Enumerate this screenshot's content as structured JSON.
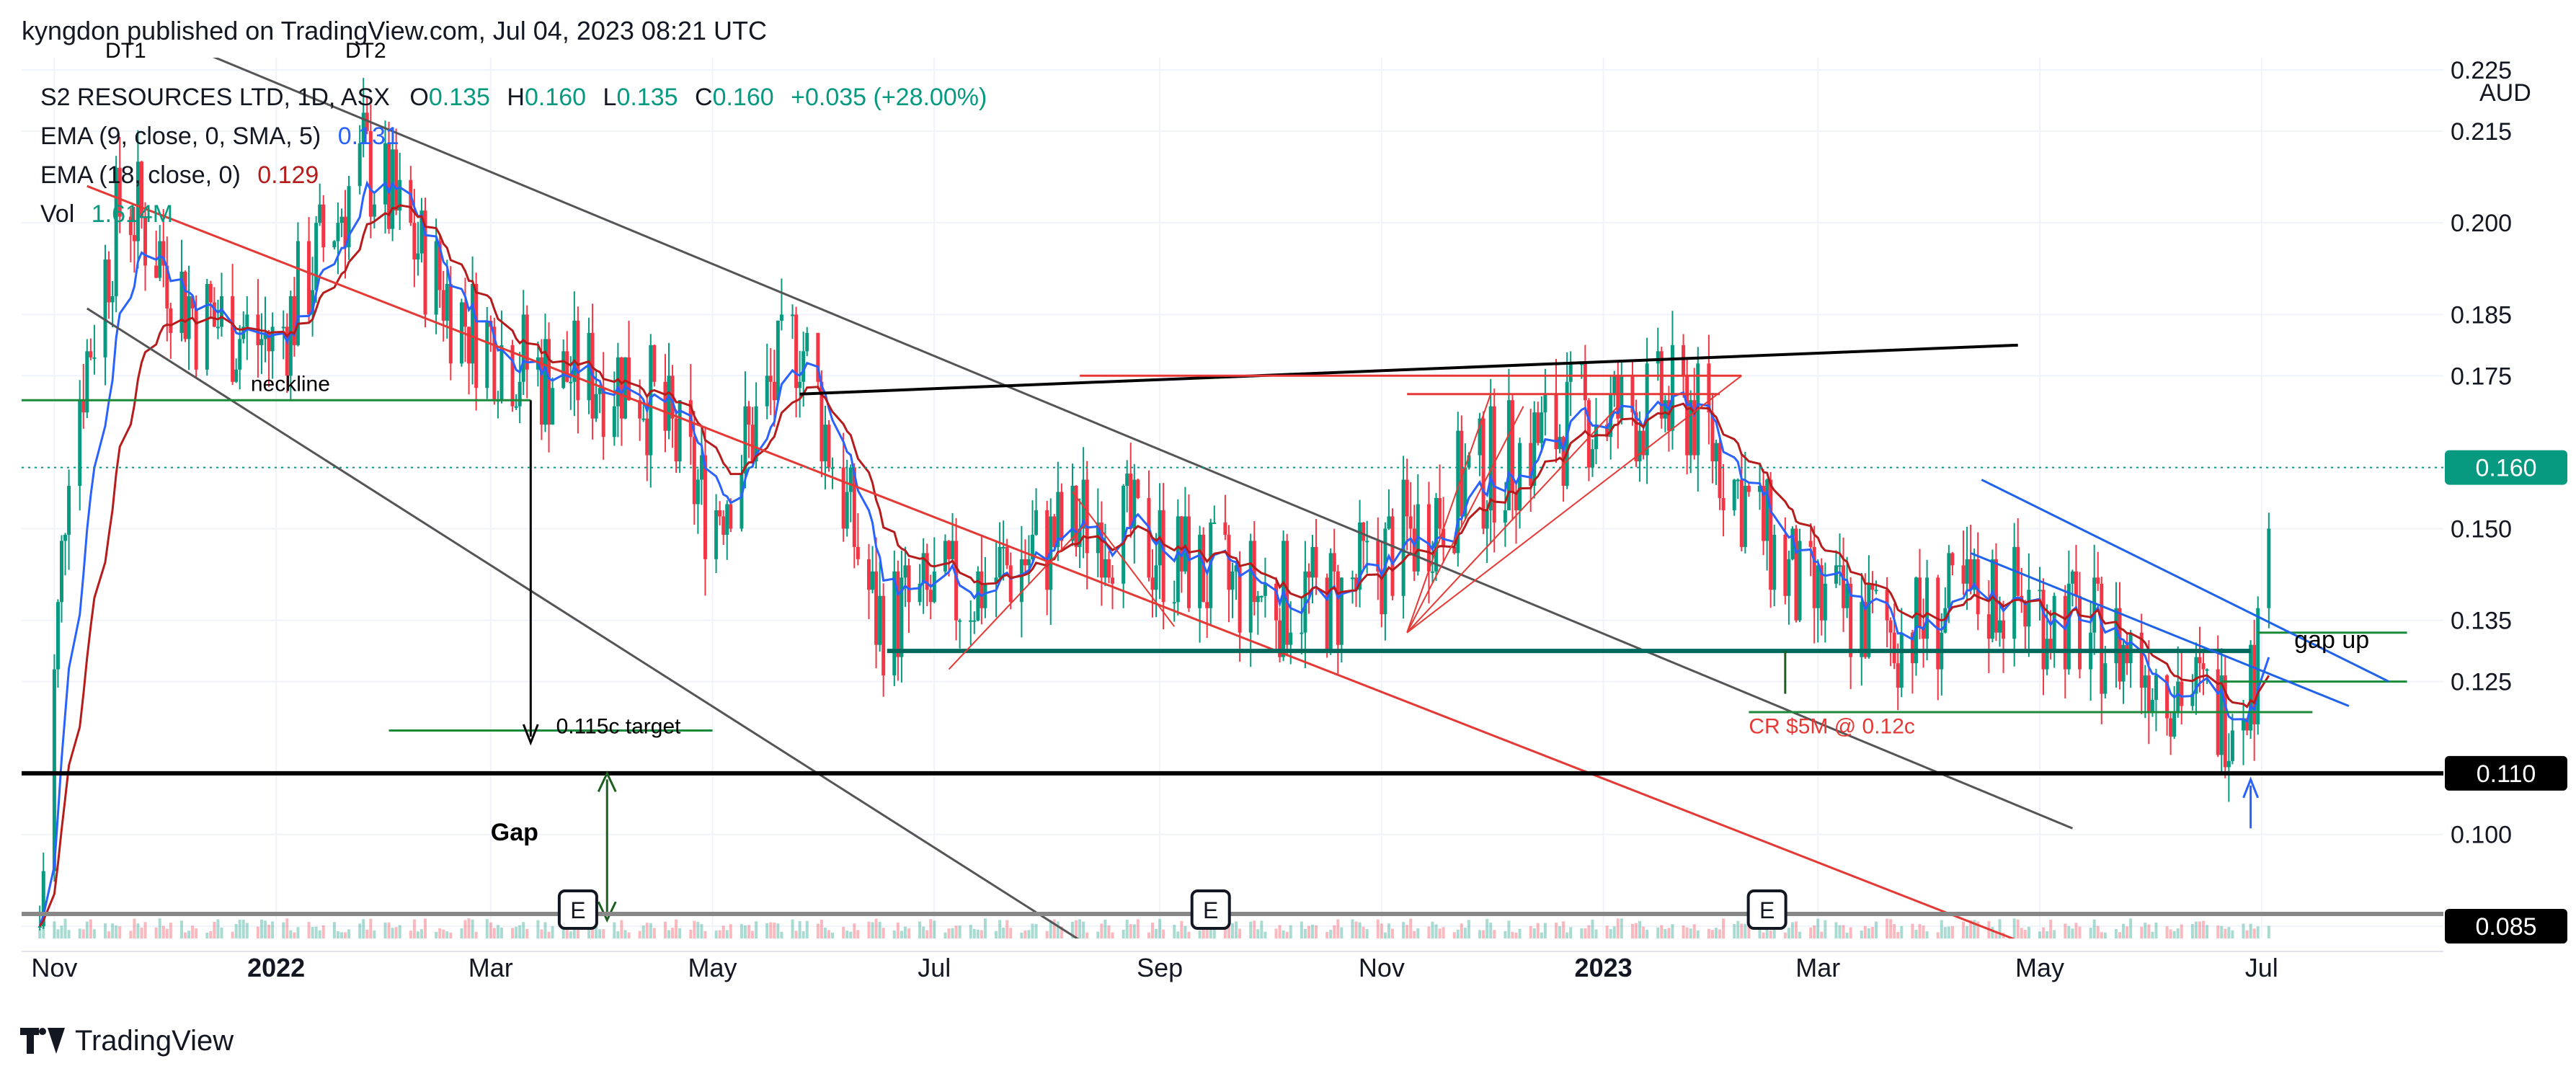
{
  "header": {
    "publisher_line": "kyngdon published on TradingView.com, Jul 04, 2023 08:21 UTC"
  },
  "legend": {
    "symbol": "S2 RESOURCES LTD, 1D, ASX",
    "open_label": "O",
    "open": "0.135",
    "high_label": "H",
    "high": "0.160",
    "low_label": "L",
    "low": "0.135",
    "close_label": "C",
    "close": "0.160",
    "change": "+0.035 (+28.00%)",
    "ema9_label": "EMA (9, close, 0, SMA, 5)",
    "ema9_value": "0.131",
    "ema18_label": "EMA (18, close, 0)",
    "ema18_value": "0.129",
    "vol_label": "Vol",
    "vol_value": "1.614M"
  },
  "branding": {
    "name": "TradingView"
  },
  "colors": {
    "up": "#089981",
    "down": "#f23645",
    "ema9": "#2962ff",
    "ema18": "#b71c1c",
    "axis_text": "#131722",
    "grid": "#f0f3fa"
  },
  "chart_data": {
    "type": "candlestick",
    "title": "S2 RESOURCES LTD, 1D, ASX",
    "currency": "AUD",
    "x_tick_labels": [
      "Nov",
      "2022",
      "Mar",
      "May",
      "Jul",
      "Sep",
      "Nov",
      "2023",
      "Mar",
      "May",
      "Jul"
    ],
    "y_tick_labels": [
      "0.085",
      "0.100",
      "0.110",
      "0.125",
      "0.135",
      "0.150",
      "0.160",
      "0.175",
      "0.185",
      "0.200",
      "0.215",
      "0.225"
    ],
    "ylim": [
      0.083,
      0.227
    ],
    "last_price": 0.16,
    "price_marker_labels": [
      "0.160",
      "0.110",
      "0.085"
    ],
    "trend_of_close_by_month": [
      {
        "date": "2021-10-28",
        "close": 0.085
      },
      {
        "date": "2021-11-05",
        "close": 0.165
      },
      {
        "date": "2021-11-20",
        "close": 0.205
      },
      {
        "date": "2021-12-10",
        "close": 0.185
      },
      {
        "date": "2022-01-01",
        "close": 0.18
      },
      {
        "date": "2022-01-25",
        "close": 0.21
      },
      {
        "date": "2022-02-20",
        "close": 0.185
      },
      {
        "date": "2022-03-15",
        "close": 0.175
      },
      {
        "date": "2022-04-10",
        "close": 0.175
      },
      {
        "date": "2022-05-01",
        "close": 0.152
      },
      {
        "date": "2022-05-25",
        "close": 0.182
      },
      {
        "date": "2022-06-15",
        "close": 0.135
      },
      {
        "date": "2022-07-10",
        "close": 0.14
      },
      {
        "date": "2022-08-15",
        "close": 0.152
      },
      {
        "date": "2022-09-20",
        "close": 0.14
      },
      {
        "date": "2022-10-20",
        "close": 0.138
      },
      {
        "date": "2022-11-25",
        "close": 0.158
      },
      {
        "date": "2022-12-25",
        "close": 0.168
      },
      {
        "date": "2023-01-25",
        "close": 0.17
      },
      {
        "date": "2023-02-25",
        "close": 0.138
      },
      {
        "date": "2023-03-25",
        "close": 0.133
      },
      {
        "date": "2023-04-20",
        "close": 0.14
      },
      {
        "date": "2023-05-25",
        "close": 0.13
      },
      {
        "date": "2023-06-20",
        "close": 0.12
      },
      {
        "date": "2023-06-30",
        "close": 0.128
      },
      {
        "date": "2023-07-03",
        "close": 0.16
      }
    ],
    "annotations": [
      {
        "label": "DT1"
      },
      {
        "label": "DT2"
      },
      {
        "label": "neckline",
        "price": 0.171
      },
      {
        "label": "0.115c target",
        "price": 0.115
      },
      {
        "label": "Gap"
      },
      {
        "label": "CR $5M @ 0.12c",
        "price": 0.12
      },
      {
        "label": "gap up"
      }
    ],
    "horizontal_levels": [
      0.171,
      0.13,
      0.125,
      0.12,
      0.11
    ],
    "earnings_markers": [
      "E",
      "E",
      "E"
    ]
  }
}
